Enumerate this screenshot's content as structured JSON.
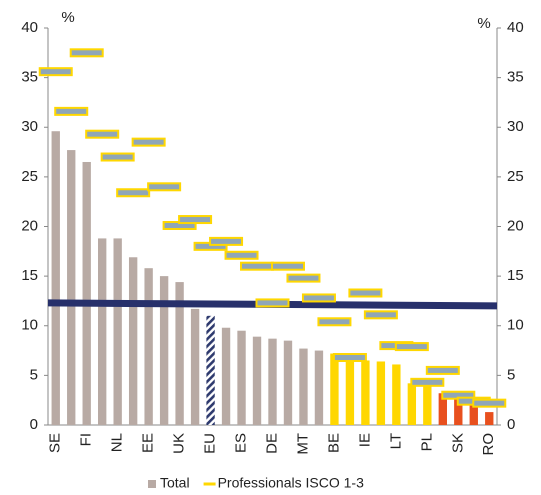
{
  "chart_data": {
    "type": "bar",
    "y_label": "%",
    "y2_label": "%",
    "categories": [
      "SE",
      null,
      "FI",
      null,
      "NL",
      null,
      "EE",
      null,
      "UK",
      null,
      "EU",
      null,
      "ES",
      null,
      "DE",
      null,
      "MT",
      null,
      "BE",
      null,
      "IE",
      null,
      "LT",
      null,
      "PL",
      null,
      "SK",
      null,
      "RO"
    ],
    "series": [
      {
        "name": "Total",
        "color": "#b8aaa4",
        "bar_colors": [
          "#b8aaa4",
          "#b8aaa4",
          "#b8aaa4",
          "#b8aaa4",
          "#b8aaa4",
          "#b8aaa4",
          "#b8aaa4",
          "#b8aaa4",
          "#b8aaa4",
          "#b8aaa4",
          "#2e3a6e",
          "#b8aaa4",
          "#b8aaa4",
          "#b8aaa4",
          "#b8aaa4",
          "#b8aaa4",
          "#b8aaa4",
          "#b8aaa4",
          "#ffd700",
          "#ffd700",
          "#ffd700",
          "#ffd700",
          "#ffd700",
          "#ffd700",
          "#ffd700",
          "#e8501e",
          "#e8501e",
          "#e8501e",
          "#e8501e"
        ],
        "hatched": [
          10
        ],
        "values": [
          29.6,
          27.7,
          26.5,
          18.8,
          18.8,
          16.9,
          15.8,
          15.0,
          14.4,
          11.7,
          11.0,
          9.8,
          9.5,
          8.9,
          8.7,
          8.5,
          7.7,
          7.5,
          7.2,
          6.9,
          6.5,
          6.4,
          6.1,
          4.2,
          4.0,
          3.2,
          2.7,
          2.2,
          1.3
        ]
      },
      {
        "name": "Professionals ISCO 1-3",
        "type": "marker",
        "color": "#ffd700",
        "fill": "#8fa6b8",
        "values": [
          35.6,
          31.6,
          37.5,
          29.3,
          27.0,
          23.4,
          28.5,
          24.0,
          20.1,
          20.7,
          18.0,
          18.5,
          17.1,
          16.0,
          12.3,
          16.0,
          14.8,
          12.8,
          10.4,
          6.8,
          13.3,
          11.1,
          8.0,
          7.9,
          4.3,
          5.5,
          3.0,
          2.4,
          2.2
        ]
      }
    ],
    "reference_line": {
      "color": "#27306b",
      "values": [
        12.3,
        12.0
      ]
    },
    "ylim": [
      0,
      40
    ],
    "yticks": [
      0,
      5,
      10,
      15,
      20,
      25,
      30,
      35,
      40
    ],
    "y2lim": [
      0,
      40
    ],
    "y2ticks": [
      0,
      5,
      10,
      15,
      20,
      25,
      30,
      35,
      40
    ],
    "legend": "bottom"
  }
}
